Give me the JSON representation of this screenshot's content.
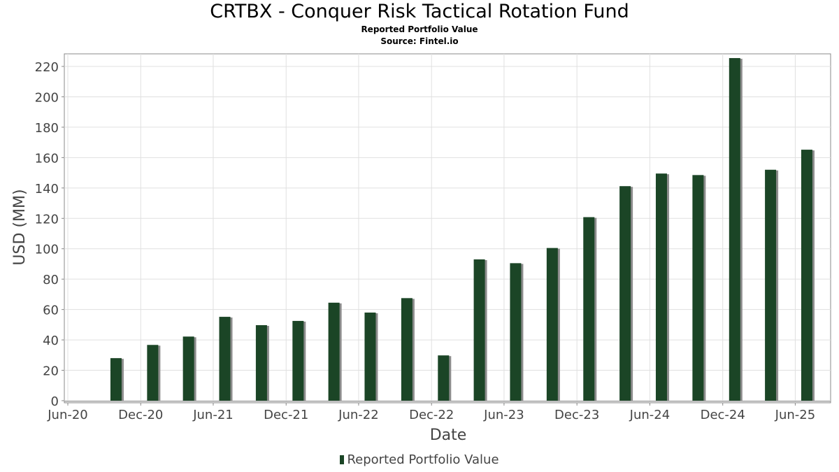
{
  "chart_data": {
    "type": "bar",
    "title": "CRTBX - Conquer Risk Tactical Rotation Fund",
    "subtitle": "Reported Portfolio Value",
    "source": "Source: Fintel.io",
    "xlabel": "Date",
    "ylabel": "USD (MM)",
    "ylim": [
      0,
      230
    ],
    "yticks": [
      0,
      20,
      40,
      60,
      80,
      100,
      120,
      140,
      160,
      180,
      200,
      220
    ],
    "xlim": [
      "2020-06-01",
      "2025-08-20"
    ],
    "xticks": [
      {
        "date": "2020-06-01",
        "label": "Jun-20"
      },
      {
        "date": "2020-12-01",
        "label": "Dec-20"
      },
      {
        "date": "2021-06-01",
        "label": "Jun-21"
      },
      {
        "date": "2021-12-01",
        "label": "Dec-21"
      },
      {
        "date": "2022-06-01",
        "label": "Jun-22"
      },
      {
        "date": "2022-12-01",
        "label": "Dec-22"
      },
      {
        "date": "2023-06-01",
        "label": "Jun-23"
      },
      {
        "date": "2023-12-01",
        "label": "Dec-23"
      },
      {
        "date": "2024-06-01",
        "label": "Jun-24"
      },
      {
        "date": "2024-12-01",
        "label": "Dec-24"
      },
      {
        "date": "2025-06-01",
        "label": "Jun-25"
      }
    ],
    "grid": true,
    "legend_position": "bottom-center",
    "series": [
      {
        "name": "Reported Portfolio Value",
        "color": "#1b4526",
        "shadow_color": "#8c8c8c",
        "points": [
          {
            "date": "2020-09-30",
            "value": 28
          },
          {
            "date": "2020-12-31",
            "value": 36.7
          },
          {
            "date": "2021-03-31",
            "value": 42.2
          },
          {
            "date": "2021-06-30",
            "value": 55.2
          },
          {
            "date": "2021-09-30",
            "value": 49.7
          },
          {
            "date": "2021-12-31",
            "value": 52.5
          },
          {
            "date": "2022-03-31",
            "value": 64.5
          },
          {
            "date": "2022-06-30",
            "value": 58
          },
          {
            "date": "2022-09-30",
            "value": 67.5
          },
          {
            "date": "2022-12-31",
            "value": 29.8
          },
          {
            "date": "2023-03-31",
            "value": 93
          },
          {
            "date": "2023-06-30",
            "value": 90.5
          },
          {
            "date": "2023-09-30",
            "value": 100.5
          },
          {
            "date": "2023-12-31",
            "value": 120.8
          },
          {
            "date": "2024-03-31",
            "value": 141.2
          },
          {
            "date": "2024-06-30",
            "value": 149.5
          },
          {
            "date": "2024-09-30",
            "value": 148.5
          },
          {
            "date": "2024-12-31",
            "value": 225.5
          },
          {
            "date": "2025-03-31",
            "value": 152
          },
          {
            "date": "2025-06-30",
            "value": 165.2
          }
        ]
      }
    ]
  }
}
